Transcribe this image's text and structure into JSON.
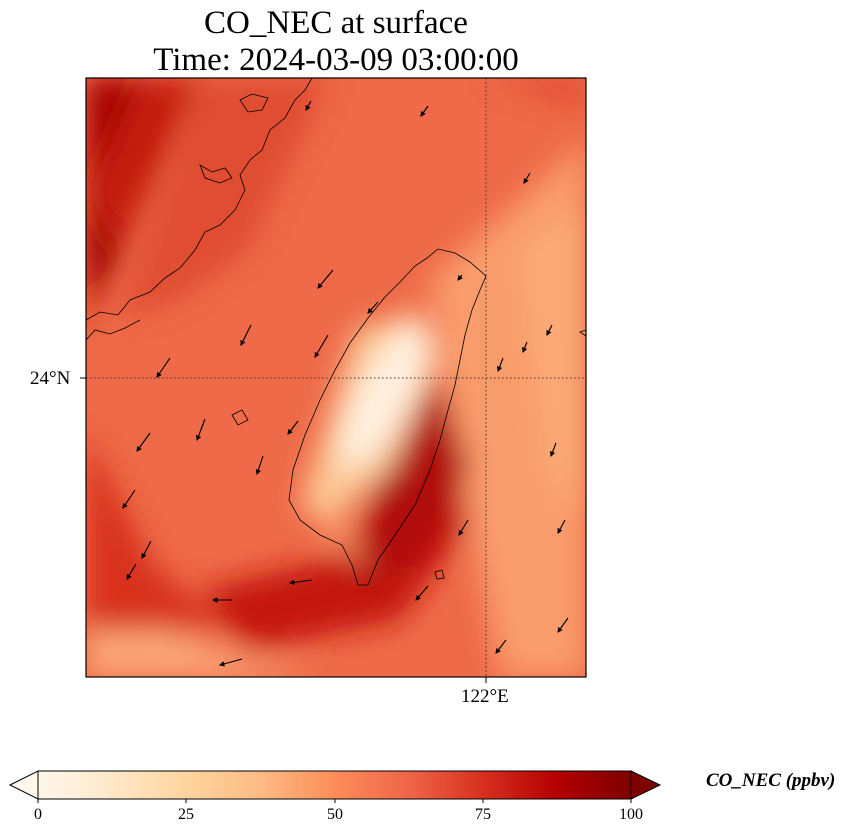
{
  "title": {
    "line1": "CO_NEC at surface",
    "line2": "Time: 2024-03-09 03:00:00"
  },
  "map": {
    "lat_label": "24°N",
    "lon_label": "122°E",
    "gridline_style": "dotted",
    "background_field": "gridded CO concentration shaded with OrRd colormap, wind vectors overlaid"
  },
  "colorbar": {
    "title": "CO_NEC (ppbv)",
    "colormap": "OrRd",
    "min": 0,
    "max": 100,
    "extend": "both",
    "ticks": [
      "0",
      "25",
      "50",
      "75",
      "100"
    ],
    "colors": [
      "#fff7ec",
      "#fee8c8",
      "#fdd49e",
      "#fdbb84",
      "#fc8d59",
      "#ef6548",
      "#d7301f",
      "#b30000",
      "#7f0000"
    ]
  }
}
